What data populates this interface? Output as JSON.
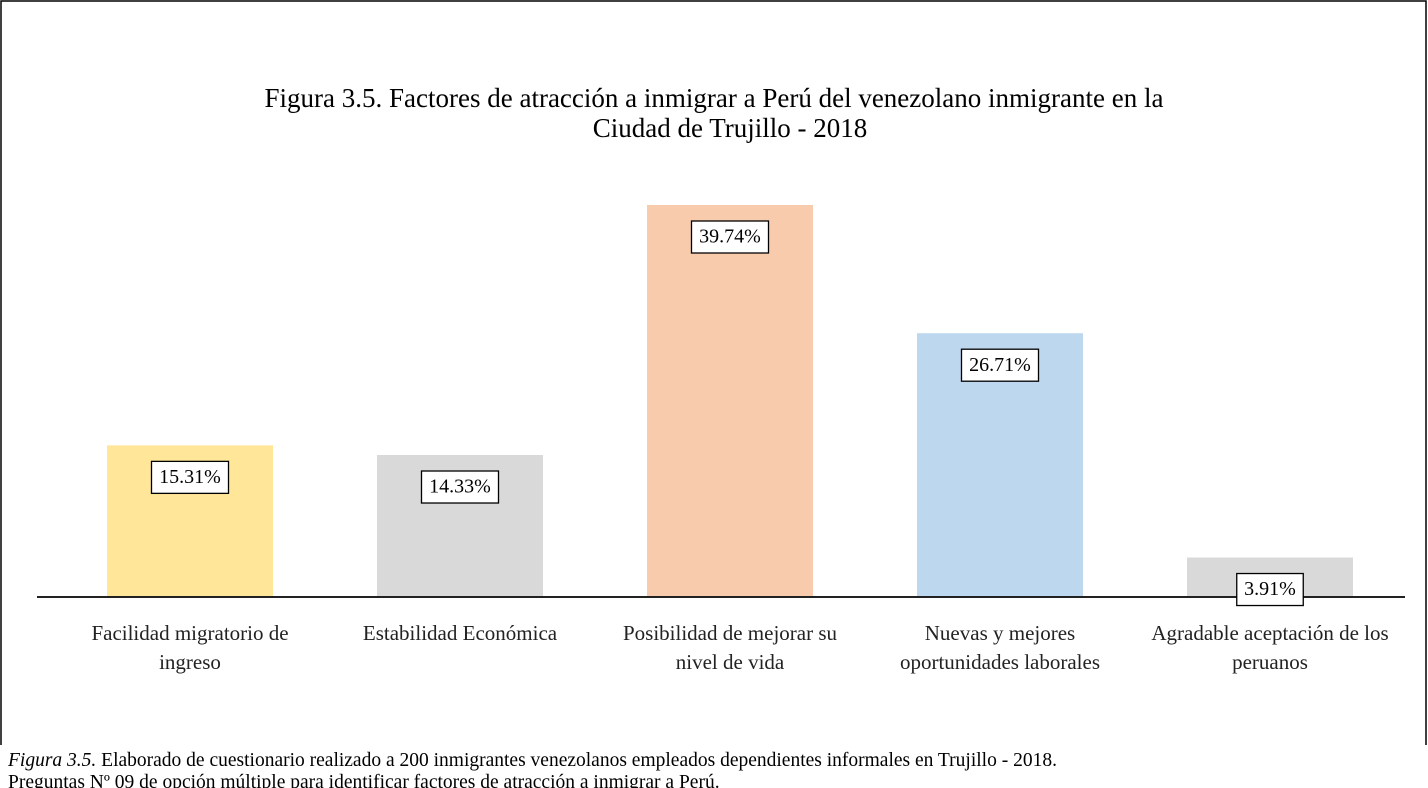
{
  "chart_data": {
    "type": "bar",
    "title": [
      "Figura 3.5. Factores de atracción a inmigrar a Perú del venezolano inmigrante en la",
      "Ciudad de Trujillo - 2018"
    ],
    "categories": [
      "Facilidad migratorio de ingreso",
      "Estabilidad Económica",
      "Posibilidad de mejorar su nivel de vida",
      "Nuevas y mejores oportunidades laborales",
      "Agradable aceptación de los peruanos"
    ],
    "values": [
      15.31,
      14.33,
      39.74,
      26.71,
      3.91
    ],
    "value_labels": [
      "15.31%",
      "14.33%",
      "39.74%",
      "26.71%",
      "3.91%"
    ],
    "colors": [
      "#ffe699",
      "#d9d9d9",
      "#f8cbad",
      "#bdd7ee",
      "#d9d9d9"
    ],
    "caption_label": "Figura 3.5.",
    "caption_lines": [
      "Elaborado de cuestionario realizado a 200 inmigrantes venezolanos empleados dependientes informales en Trujillo - 2018.",
      "Preguntas Nº 09 de opción múltiple para identificar factores de atracción a inmigrar a Perú."
    ]
  }
}
